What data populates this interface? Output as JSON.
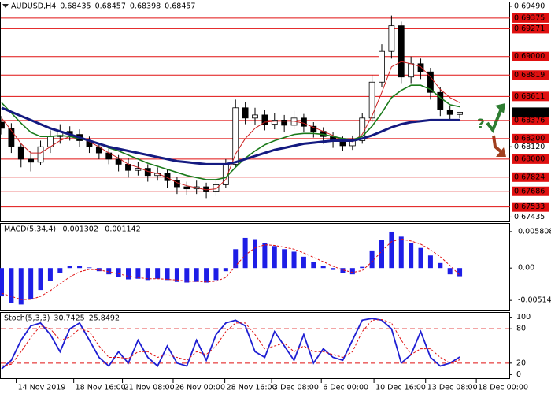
{
  "chart_data": [
    {
      "type": "candlestick",
      "title": "AUDUSD,H4",
      "annotation": "?",
      "open": [
        0.6836,
        0.683,
        0.6812,
        0.68,
        0.6797,
        0.6812,
        0.6822,
        0.6827,
        0.6824,
        0.6818,
        0.6812,
        0.6806,
        0.68,
        0.6795,
        0.6789,
        0.6791,
        0.6784,
        0.6786,
        0.6779,
        0.6773,
        0.6771,
        0.6773,
        0.6768,
        0.6775,
        0.6795,
        0.685,
        0.684,
        0.6843,
        0.6834,
        0.6838,
        0.6833,
        0.684,
        0.6832,
        0.6827,
        0.6822,
        0.6818,
        0.6813,
        0.6818,
        0.684,
        0.6875,
        0.6905,
        0.693,
        0.688,
        0.6893,
        0.6885,
        0.6865,
        0.6848,
        0.68435
      ],
      "high": [
        0.6842,
        0.6835,
        0.6816,
        0.6808,
        0.6818,
        0.6828,
        0.6834,
        0.6832,
        0.6829,
        0.6822,
        0.6816,
        0.6812,
        0.6804,
        0.6801,
        0.6797,
        0.6795,
        0.6792,
        0.679,
        0.6783,
        0.6778,
        0.6779,
        0.6777,
        0.6781,
        0.68,
        0.6858,
        0.6856,
        0.685,
        0.6848,
        0.6845,
        0.6843,
        0.6847,
        0.6844,
        0.6836,
        0.6831,
        0.6826,
        0.6822,
        0.6823,
        0.6845,
        0.6882,
        0.6912,
        0.694,
        0.6934,
        0.69,
        0.6898,
        0.6889,
        0.687,
        0.6852,
        0.68457
      ],
      "low": [
        0.6824,
        0.6806,
        0.6792,
        0.6788,
        0.6794,
        0.6806,
        0.6815,
        0.6818,
        0.6812,
        0.6806,
        0.68,
        0.6795,
        0.6788,
        0.6782,
        0.6784,
        0.6778,
        0.6779,
        0.6772,
        0.6766,
        0.6765,
        0.6766,
        0.6762,
        0.6764,
        0.6772,
        0.6792,
        0.6834,
        0.6833,
        0.6828,
        0.6829,
        0.6826,
        0.6829,
        0.6826,
        0.6821,
        0.6815,
        0.6811,
        0.6808,
        0.6809,
        0.6815,
        0.6836,
        0.687,
        0.6898,
        0.6874,
        0.6874,
        0.6878,
        0.6858,
        0.6842,
        0.6838,
        0.68398
      ],
      "close": [
        0.683,
        0.6812,
        0.68,
        0.6797,
        0.6812,
        0.6822,
        0.6827,
        0.6824,
        0.6818,
        0.6812,
        0.6806,
        0.68,
        0.6795,
        0.6789,
        0.6791,
        0.6784,
        0.6786,
        0.6779,
        0.6773,
        0.6771,
        0.6773,
        0.6768,
        0.6775,
        0.6795,
        0.685,
        0.684,
        0.6843,
        0.6834,
        0.6838,
        0.6833,
        0.684,
        0.6832,
        0.6827,
        0.6822,
        0.6818,
        0.6813,
        0.6818,
        0.684,
        0.6875,
        0.6905,
        0.693,
        0.688,
        0.6893,
        0.6885,
        0.6865,
        0.6848,
        0.68435,
        0.68457
      ],
      "series": [
        {
          "color": "#cc2020",
          "width": 1,
          "values": [
            0.684,
            0.6828,
            0.6815,
            0.6806,
            0.6806,
            0.6812,
            0.6818,
            0.6822,
            0.6821,
            0.6817,
            0.6812,
            0.6806,
            0.6801,
            0.6795,
            0.6792,
            0.6788,
            0.6786,
            0.6782,
            0.6777,
            0.6774,
            0.6772,
            0.677,
            0.6771,
            0.678,
            0.6805,
            0.682,
            0.683,
            0.6836,
            0.6837,
            0.6837,
            0.6837,
            0.6835,
            0.6831,
            0.6827,
            0.6823,
            0.6819,
            0.6817,
            0.6824,
            0.6842,
            0.6865,
            0.689,
            0.6895,
            0.6893,
            0.689,
            0.688,
            0.6868,
            0.686,
            0.6855
          ]
        },
        {
          "color": "#1a7a1a",
          "width": 1.6,
          "values": [
            0.6855,
            0.6845,
            0.6835,
            0.6826,
            0.6822,
            0.6822,
            0.6823,
            0.6822,
            0.682,
            0.6818,
            0.6815,
            0.6811,
            0.6808,
            0.6804,
            0.68,
            0.6796,
            0.6793,
            0.679,
            0.6787,
            0.6784,
            0.6782,
            0.678,
            0.678,
            0.6782,
            0.6792,
            0.6801,
            0.6808,
            0.6814,
            0.6818,
            0.6821,
            0.6824,
            0.6825,
            0.6825,
            0.6824,
            0.6822,
            0.682,
            0.6819,
            0.6822,
            0.6832,
            0.6845,
            0.686,
            0.6867,
            0.6872,
            0.6872,
            0.6868,
            0.686,
            0.6853,
            0.6851
          ]
        },
        {
          "color": "#141a80",
          "width": 3,
          "values": [
            0.685,
            0.6846,
            0.6842,
            0.6838,
            0.6834,
            0.683,
            0.6827,
            0.6824,
            0.6821,
            0.6818,
            0.6815,
            0.6812,
            0.681,
            0.6808,
            0.6806,
            0.6804,
            0.6802,
            0.68,
            0.6798,
            0.6797,
            0.6796,
            0.6795,
            0.6795,
            0.6795,
            0.6797,
            0.68,
            0.6803,
            0.6806,
            0.6809,
            0.6811,
            0.6813,
            0.6815,
            0.6816,
            0.6817,
            0.6818,
            0.6818,
            0.6818,
            0.682,
            0.6823,
            0.6827,
            0.6831,
            0.6834,
            0.6836,
            0.6837,
            0.6838,
            0.6838,
            0.6838,
            0.6838
          ]
        }
      ],
      "xlim": [
        0,
        52
      ],
      "xticks": [
        {
          "value": 1.5,
          "label": "14 Nov 2019"
        },
        {
          "value": 7.4,
          "label": "18 Nov 16:00"
        },
        {
          "value": 12.4,
          "label": "21 Nov 08:00"
        },
        {
          "value": 17.6,
          "label": "26 Nov 00:00"
        },
        {
          "value": 22.9,
          "label": "28 Nov 16:00"
        },
        {
          "value": 27.7,
          "label": "3 Dec 08:00"
        },
        {
          "value": 32.8,
          "label": "6 Dec 00:00"
        },
        {
          "value": 38.2,
          "label": "10 Dec 16:00"
        },
        {
          "value": 43.5,
          "label": "13 Dec 08:00"
        },
        {
          "value": 48.7,
          "label": "18 Dec 00:00"
        }
      ],
      "ylim": [
        0.674,
        0.6952
      ],
      "yticks": [
        {
          "value": 0.6949,
          "label": "0.69490"
        },
        {
          "value": 0.6812,
          "label": "0.68120"
        },
        0.67435
      ],
      "levels": [
        0.69375,
        0.69271,
        {
          "value": 0.69,
          "label": "0.69000"
        },
        0.68819,
        0.68611,
        0.68376,
        {
          "value": 0.682,
          "label": "0.68200"
        },
        {
          "value": 0.68,
          "label": "0.68000"
        },
        0.67824,
        0.67686,
        0.67533
      ],
      "level_color": "#e01010",
      "last_price": 0.68457
    },
    {
      "type": "bar",
      "title": "MACD(5,34,4)",
      "color": "#1e1ee6",
      "values": [
        -0.0045,
        -0.0055,
        -0.0058,
        -0.005,
        -0.0035,
        -0.002,
        -0.0008,
        0.0003,
        0.0004,
        0.0001,
        -0.0005,
        -0.001,
        -0.0014,
        -0.0018,
        -0.0017,
        -0.0019,
        -0.0017,
        -0.0019,
        -0.0022,
        -0.0023,
        -0.0022,
        -0.0023,
        -0.0019,
        -0.0005,
        0.003,
        0.0048,
        0.0046,
        0.004,
        0.0035,
        0.003,
        0.0026,
        0.0018,
        0.001,
        0.0003,
        -0.0003,
        -0.0008,
        -0.001,
        0.0002,
        0.0028,
        0.0045,
        0.0058,
        0.005,
        0.004,
        0.0032,
        0.002,
        0.0008,
        -0.001,
        -0.001302
      ],
      "signal_color": "#e01010",
      "signal_values": [
        -0.004,
        -0.0045,
        -0.005,
        -0.005,
        -0.0045,
        -0.0036,
        -0.0025,
        -0.0014,
        -0.0006,
        -0.0002,
        -0.0003,
        -0.0006,
        -0.0009,
        -0.0013,
        -0.0015,
        -0.0017,
        -0.0017,
        -0.0018,
        -0.0019,
        -0.0021,
        -0.0021,
        -0.0022,
        -0.0021,
        -0.0015,
        0.0003,
        0.0021,
        0.0032,
        0.0037,
        0.0036,
        0.0033,
        0.003,
        0.0024,
        0.0017,
        0.001,
        0.0003,
        -0.0003,
        -0.0007,
        -0.0004,
        0.001,
        0.0027,
        0.0042,
        0.0046,
        0.0043,
        0.0038,
        0.0029,
        0.0018,
        0.0004,
        -0.001142
      ],
      "ylim": [
        -0.0065,
        0.0068
      ],
      "yticks": [
        0.005808,
        {
          "value": 0,
          "label": "0.00"
        },
        -0.00514
      ]
    },
    {
      "type": "line",
      "title": "Stoch(5,3,3)",
      "series": [
        {
          "color": "#1e1ed2",
          "dashed": false,
          "values": [
            10,
            25,
            60,
            85,
            90,
            70,
            40,
            80,
            90,
            60,
            30,
            15,
            40,
            20,
            60,
            30,
            15,
            50,
            20,
            15,
            60,
            25,
            70,
            90,
            95,
            85,
            40,
            30,
            75,
            50,
            25,
            70,
            20,
            45,
            30,
            25,
            60,
            95,
            98,
            95,
            80,
            20,
            35,
            75,
            30,
            15,
            20,
            30.7425
          ]
        },
        {
          "color": "#e01010",
          "dashed": true,
          "values": [
            15,
            18,
            40,
            65,
            85,
            80,
            60,
            65,
            80,
            75,
            50,
            30,
            30,
            28,
            40,
            40,
            30,
            35,
            30,
            25,
            40,
            35,
            50,
            75,
            90,
            90,
            70,
            45,
            50,
            55,
            40,
            50,
            40,
            40,
            35,
            30,
            40,
            75,
            95,
            96,
            90,
            60,
            35,
            45,
            45,
            30,
            20,
            25.8492
          ]
        }
      ],
      "ylim": [
        -5,
        105
      ],
      "yticks": [
        100,
        80,
        20,
        0
      ],
      "levels": [
        80,
        20
      ],
      "level_color": "#e01010"
    }
  ]
}
